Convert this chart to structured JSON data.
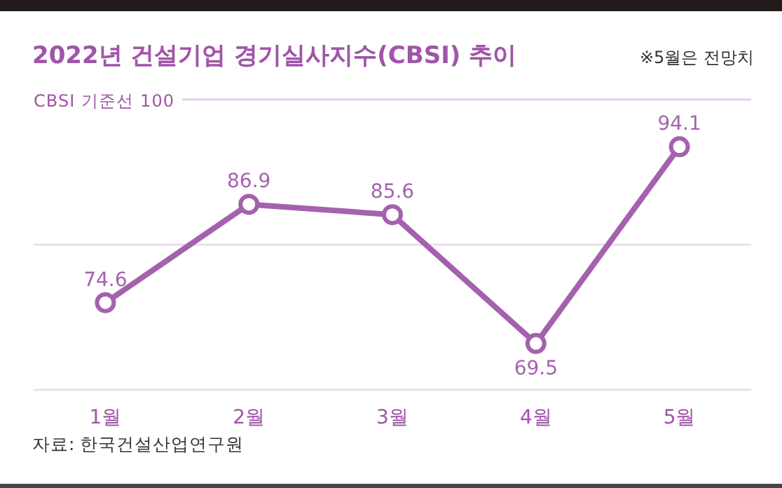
{
  "chart_data": {
    "type": "line",
    "title": "2022년 건설기업 경기실사지수(CBSI) 추이",
    "categories": [
      "1월",
      "2월",
      "3월",
      "4월",
      "5월"
    ],
    "series": [
      {
        "color": "#a461ad",
        "values": [
          74.6,
          86.9,
          85.6,
          69.5,
          94.1
        ]
      }
    ],
    "ylim": [
      63.7,
      100
    ],
    "yticks": [
      {
        "value": 63.7,
        "label": null
      },
      {
        "value": 81.85,
        "label": null
      },
      {
        "value": 100,
        "label": null
      }
    ],
    "grid": "y",
    "marker": "circle",
    "data_labels": true,
    "tick_labels": "x",
    "ref_lines": [
      {
        "axis": "y",
        "value": 100,
        "label": "CBSI 기준선 100",
        "color": "#e6d3ea"
      }
    ],
    "annotations": [
      "※5월은 전망치",
      "자료: 한국건설산업연구원"
    ]
  }
}
